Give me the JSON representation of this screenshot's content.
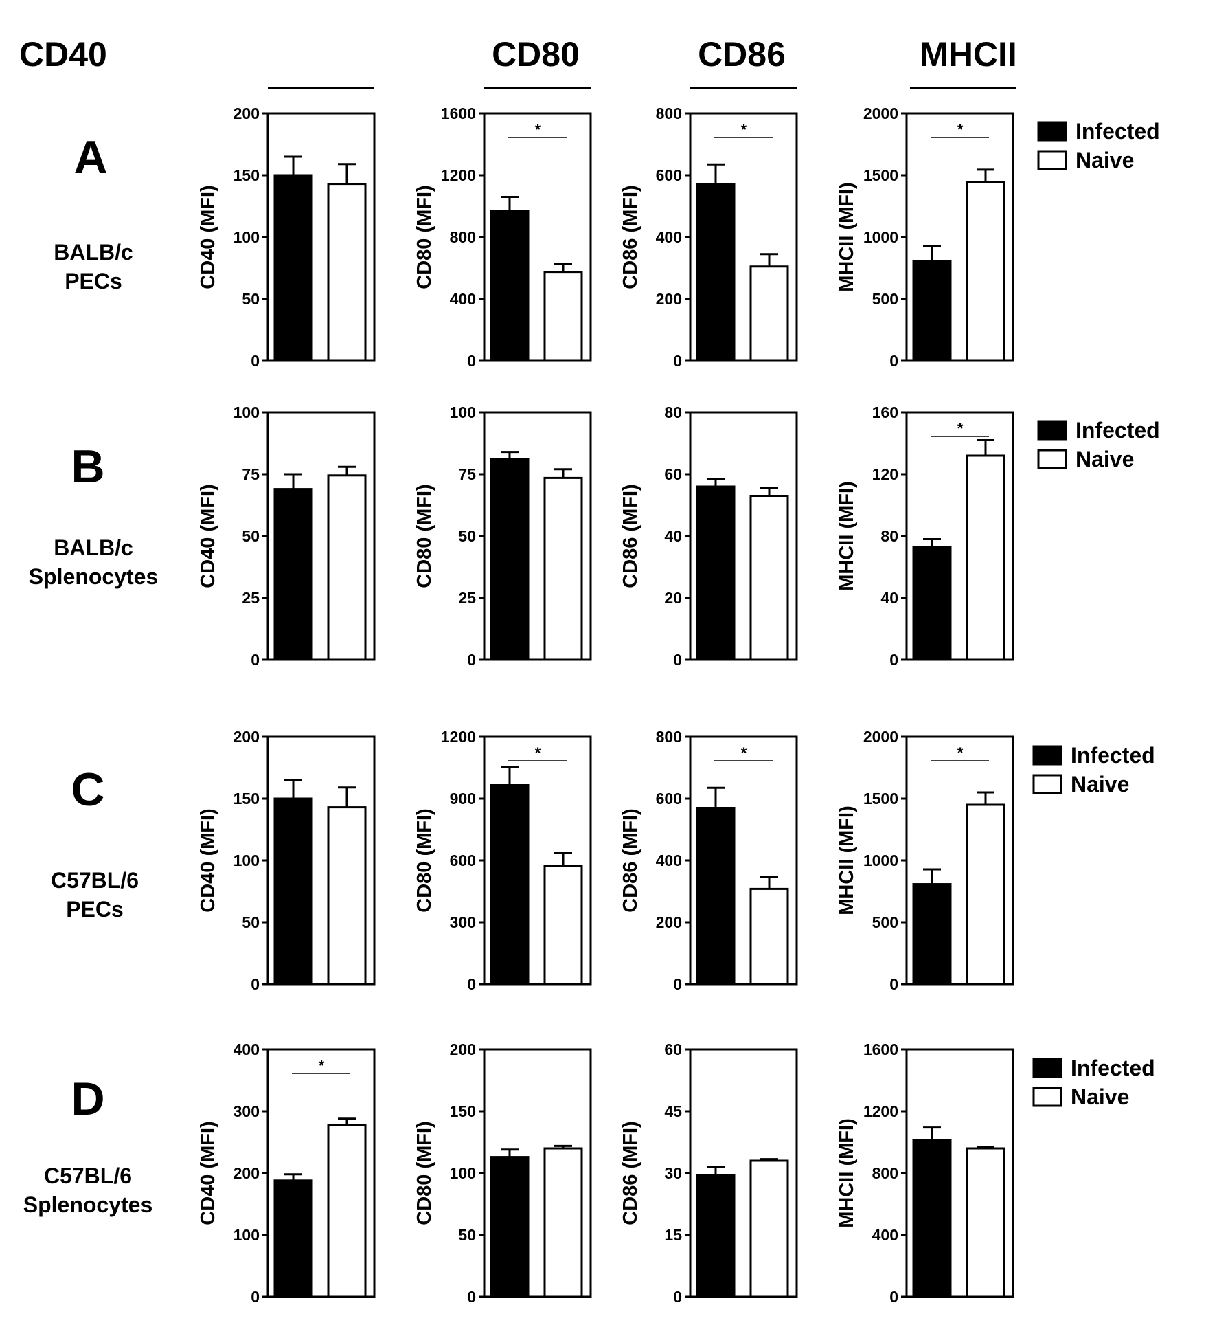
{
  "column_headers": [
    "CD40",
    "CD80",
    "CD86",
    "MHCII"
  ],
  "rows": [
    {
      "letter": "A",
      "label": [
        "BALB/c",
        "PECs"
      ]
    },
    {
      "letter": "B",
      "label": [
        "BALB/c",
        "Splenocytes"
      ]
    },
    {
      "letter": "C",
      "label": [
        "C57BL/6",
        "PECs"
      ]
    },
    {
      "letter": "D",
      "label": [
        "C57BL/6",
        "Splenocytes"
      ]
    }
  ],
  "legend": {
    "infected": "Infected",
    "naive": "Naive"
  },
  "significance_marker": "*",
  "colors": {
    "infected": "#000000",
    "naive": "#ffffff",
    "axis": "#000000"
  },
  "chart_data": [
    {
      "row": 0,
      "col": 0,
      "type": "bar",
      "ylabel": "CD40 (MFI)",
      "ylim": [
        0,
        200
      ],
      "ticks": [
        0,
        50,
        100,
        150,
        200
      ],
      "categories": [
        "Infected",
        "Naive"
      ],
      "values": [
        150,
        143
      ],
      "errors": [
        15,
        16
      ],
      "significant": false
    },
    {
      "row": 0,
      "col": 1,
      "type": "bar",
      "ylabel": "CD80 (MFI)",
      "ylim": [
        0,
        1600
      ],
      "ticks": [
        0,
        400,
        800,
        1200,
        1600
      ],
      "categories": [
        "Infected",
        "Naive"
      ],
      "values": [
        970,
        575
      ],
      "errors": [
        90,
        50
      ],
      "significant": true
    },
    {
      "row": 0,
      "col": 2,
      "type": "bar",
      "ylabel": "CD86 (MFI)",
      "ylim": [
        0,
        800
      ],
      "ticks": [
        0,
        200,
        400,
        600,
        800
      ],
      "categories": [
        "Infected",
        "Naive"
      ],
      "values": [
        570,
        305
      ],
      "errors": [
        65,
        40
      ],
      "significant": true
    },
    {
      "row": 0,
      "col": 3,
      "type": "bar",
      "ylabel": "MHCII (MFI)",
      "ylim": [
        0,
        2000
      ],
      "ticks": [
        0,
        500,
        1000,
        1500,
        2000
      ],
      "categories": [
        "Infected",
        "Naive"
      ],
      "values": [
        805,
        1445
      ],
      "errors": [
        120,
        100
      ],
      "significant": true
    },
    {
      "row": 1,
      "col": 0,
      "type": "bar",
      "ylabel": "CD40 (MFI)",
      "ylim": [
        0,
        100
      ],
      "ticks": [
        0,
        25,
        50,
        75,
        100
      ],
      "categories": [
        "Infected",
        "Naive"
      ],
      "values": [
        69,
        74.5
      ],
      "errors": [
        6,
        3.5
      ],
      "significant": false
    },
    {
      "row": 1,
      "col": 1,
      "type": "bar",
      "ylabel": "CD80 (MFI)",
      "ylim": [
        0,
        100
      ],
      "ticks": [
        0,
        25,
        50,
        75,
        100
      ],
      "categories": [
        "Infected",
        "Naive"
      ],
      "values": [
        81,
        73.5
      ],
      "errors": [
        3,
        3.5
      ],
      "significant": false
    },
    {
      "row": 1,
      "col": 2,
      "type": "bar",
      "ylabel": "CD86 (MFI)",
      "ylim": [
        0,
        80
      ],
      "ticks": [
        0,
        20,
        40,
        60,
        80
      ],
      "categories": [
        "Infected",
        "Naive"
      ],
      "values": [
        56,
        53
      ],
      "errors": [
        2.5,
        2.5
      ],
      "significant": false
    },
    {
      "row": 1,
      "col": 3,
      "type": "bar",
      "ylabel": "MHCII (MFI)",
      "ylim": [
        0,
        160
      ],
      "ticks": [
        0,
        40,
        80,
        120,
        160
      ],
      "categories": [
        "Infected",
        "Naive"
      ],
      "values": [
        73,
        132
      ],
      "errors": [
        5,
        10
      ],
      "significant": true
    },
    {
      "row": 2,
      "col": 0,
      "type": "bar",
      "ylabel": "CD40 (MFI)",
      "ylim": [
        0,
        200
      ],
      "ticks": [
        0,
        50,
        100,
        150,
        200
      ],
      "categories": [
        "Infected",
        "Naive"
      ],
      "values": [
        150,
        143
      ],
      "errors": [
        15,
        16
      ],
      "significant": false
    },
    {
      "row": 2,
      "col": 1,
      "type": "bar",
      "ylabel": "CD80 (MFI)",
      "ylim": [
        0,
        1200
      ],
      "ticks": [
        0,
        300,
        600,
        900,
        1200
      ],
      "categories": [
        "Infected",
        "Naive"
      ],
      "values": [
        965,
        575
      ],
      "errors": [
        90,
        60
      ],
      "significant": true
    },
    {
      "row": 2,
      "col": 2,
      "type": "bar",
      "ylabel": "CD86 (MFI)",
      "ylim": [
        0,
        800
      ],
      "ticks": [
        0,
        200,
        400,
        600,
        800
      ],
      "categories": [
        "Infected",
        "Naive"
      ],
      "values": [
        570,
        308
      ],
      "errors": [
        65,
        38
      ],
      "significant": true
    },
    {
      "row": 2,
      "col": 3,
      "type": "bar",
      "ylabel": "MHCII (MFI)",
      "ylim": [
        0,
        2000
      ],
      "ticks": [
        0,
        500,
        1000,
        1500,
        2000
      ],
      "categories": [
        "Infected",
        "Naive"
      ],
      "values": [
        808,
        1450
      ],
      "errors": [
        120,
        100
      ],
      "significant": true
    },
    {
      "row": 3,
      "col": 0,
      "type": "bar",
      "ylabel": "CD40 (MFI)",
      "ylim": [
        0,
        400
      ],
      "ticks": [
        0,
        100,
        200,
        300,
        400
      ],
      "categories": [
        "Infected",
        "Naive"
      ],
      "values": [
        188,
        278
      ],
      "errors": [
        10,
        10
      ],
      "significant": true
    },
    {
      "row": 3,
      "col": 1,
      "type": "bar",
      "ylabel": "CD80 (MFI)",
      "ylim": [
        0,
        200
      ],
      "ticks": [
        0,
        50,
        100,
        150,
        200
      ],
      "categories": [
        "Infected",
        "Naive"
      ],
      "values": [
        113,
        120
      ],
      "errors": [
        6,
        2
      ],
      "significant": false
    },
    {
      "row": 3,
      "col": 2,
      "type": "bar",
      "ylabel": "CD86 (MFI)",
      "ylim": [
        0,
        60
      ],
      "ticks": [
        0,
        15,
        30,
        45,
        60
      ],
      "categories": [
        "Infected",
        "Naive"
      ],
      "values": [
        29.5,
        33
      ],
      "errors": [
        2,
        0.4
      ],
      "significant": false
    },
    {
      "row": 3,
      "col": 3,
      "type": "bar",
      "ylabel": "MHCII (MFI)",
      "ylim": [
        0,
        1600
      ],
      "ticks": [
        0,
        400,
        800,
        1200,
        1600
      ],
      "categories": [
        "Infected",
        "Naive"
      ],
      "values": [
        1015,
        960
      ],
      "errors": [
        80,
        8
      ],
      "significant": false
    }
  ]
}
